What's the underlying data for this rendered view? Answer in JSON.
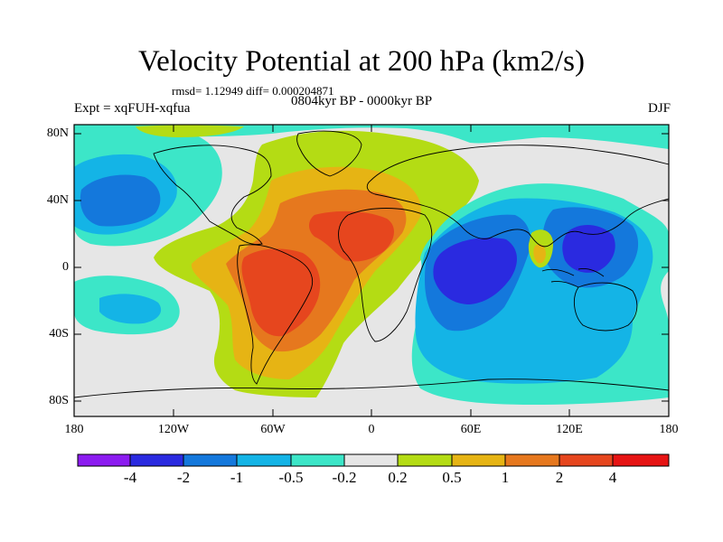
{
  "header": {
    "title": "Velocity Potential at 200 hPa (km2/s)",
    "stats": "rmsd= 1.12949 diff= 0.000204871",
    "period": "0804kyr BP - 0000kyr BP",
    "experiment": "Expt = xqFUH-xqfua",
    "season": "DJF"
  },
  "axes": {
    "lat_labels": [
      "80N",
      "40N",
      "0",
      "40S",
      "80S"
    ],
    "lon_labels": [
      "180",
      "120W",
      "60W",
      "0",
      "60E",
      "120E",
      "180"
    ]
  },
  "colorbar": {
    "colors": [
      "#8c1cf0",
      "#2a2ae0",
      "#1478dc",
      "#14b4e6",
      "#3ce6c8",
      "#e6e6e6",
      "#b4dc14",
      "#e6b414",
      "#e6781e",
      "#e6461e",
      "#e61414"
    ],
    "labels": [
      "-4",
      "-2",
      "-1",
      "-0.5",
      "-0.2",
      "0.2",
      "0.5",
      "1",
      "2",
      "4"
    ]
  }
}
